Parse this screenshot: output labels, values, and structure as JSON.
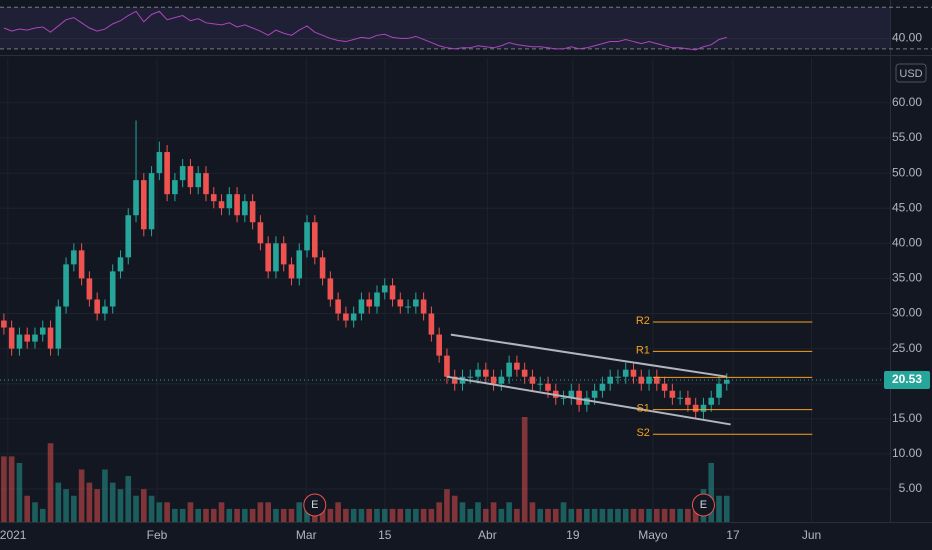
{
  "chart_data": {
    "type": "candlestick",
    "x": [
      0,
      1,
      2,
      3,
      4,
      5,
      6,
      7,
      8,
      9,
      10,
      11,
      12,
      13,
      14,
      15,
      16,
      17,
      18,
      19,
      20,
      21,
      22,
      23,
      24,
      25,
      26,
      27,
      28,
      29,
      30,
      31,
      32,
      33,
      34,
      35,
      36,
      37,
      38,
      39,
      40,
      41,
      42,
      43,
      44,
      45,
      46,
      47,
      48,
      49,
      50,
      51,
      52,
      53,
      54,
      55,
      56,
      57,
      58,
      59,
      60,
      61,
      62,
      63,
      64,
      65,
      66,
      67,
      68,
      69,
      70,
      71,
      72,
      73,
      74,
      75,
      76,
      77,
      78,
      79,
      80,
      81,
      82,
      83,
      84,
      85,
      86,
      87,
      88,
      89,
      90,
      91,
      92,
      93
    ],
    "open": [
      29,
      28,
      25,
      27,
      26,
      27,
      28,
      25,
      31,
      37,
      39,
      35,
      32,
      30,
      31,
      36,
      38,
      44,
      49,
      42,
      50,
      53,
      47,
      49,
      51,
      48,
      50,
      47,
      46,
      45,
      47,
      44,
      46,
      43,
      40,
      36,
      40,
      37,
      35,
      39,
      43,
      38,
      35,
      32,
      30,
      29,
      30,
      32,
      31,
      33,
      34,
      32,
      31,
      31,
      32,
      30,
      27,
      24,
      21,
      20,
      21,
      21,
      22,
      21,
      20,
      21,
      23,
      22,
      21,
      20,
      20,
      19,
      18,
      18,
      19,
      17,
      18,
      19,
      20,
      21,
      21,
      22,
      21,
      20,
      21,
      20,
      19,
      18,
      18,
      17,
      16,
      17,
      18,
      20
    ],
    "high": [
      30,
      29,
      28,
      28,
      28,
      29,
      29,
      32,
      38,
      40,
      40,
      36,
      33,
      32,
      37,
      39,
      45,
      57.5,
      50,
      51,
      54.5,
      54,
      50,
      52,
      52,
      51,
      51,
      48,
      47,
      48,
      48,
      47,
      47,
      44,
      41,
      41,
      41,
      38,
      40,
      44,
      44,
      39,
      36,
      33,
      31,
      31,
      33,
      33,
      34,
      35,
      35,
      33,
      32,
      33,
      33,
      31,
      28,
      25,
      22,
      22,
      22,
      23,
      23,
      22,
      22,
      24,
      24,
      23,
      22,
      21,
      21,
      20,
      19,
      20,
      20,
      19,
      20,
      21,
      22,
      22,
      23,
      23,
      22,
      22,
      22,
      21,
      20,
      19,
      19,
      18,
      18,
      19,
      21,
      21.5
    ],
    "low": [
      27,
      24,
      24,
      25,
      25,
      26,
      24,
      24,
      30,
      36,
      34,
      31,
      29,
      29,
      30,
      35,
      37,
      43,
      41,
      41,
      49,
      46,
      46,
      48,
      47,
      47,
      46,
      45,
      44,
      44,
      43,
      43,
      42,
      39,
      35,
      35,
      36,
      34,
      34,
      38,
      37,
      34,
      31,
      29,
      28,
      28,
      29,
      30,
      30,
      32,
      31,
      30,
      30,
      30,
      29,
      26,
      23,
      20,
      19,
      19,
      20,
      20,
      20,
      19,
      19,
      20,
      21,
      20,
      19,
      19,
      18,
      17,
      17,
      17,
      16,
      16,
      17,
      18,
      19,
      20,
      20,
      20,
      19,
      19,
      19,
      18,
      17,
      17,
      16,
      15,
      15,
      16,
      17,
      19
    ],
    "close": [
      28,
      25,
      27,
      26,
      27,
      28,
      25,
      31,
      37,
      39,
      35,
      32,
      30,
      31,
      36,
      38,
      44,
      49,
      42,
      50,
      53,
      47,
      49,
      51,
      48,
      50,
      47,
      46,
      45,
      47,
      44,
      46,
      43,
      40,
      36,
      40,
      37,
      35,
      39,
      43,
      38,
      35,
      32,
      30,
      29,
      30,
      32,
      31,
      33,
      34,
      32,
      31,
      31,
      32,
      30,
      27,
      24,
      21,
      20,
      21,
      21,
      22,
      21,
      20,
      21,
      23,
      22,
      21,
      20,
      20,
      19,
      18,
      18,
      19,
      17,
      18,
      19,
      20,
      21,
      21,
      22,
      21,
      20,
      21,
      20,
      19,
      18,
      18,
      17,
      16,
      17,
      18,
      20,
      20.53
    ],
    "volume": [
      10,
      10,
      9,
      4,
      3,
      2,
      12,
      6,
      5,
      4,
      8,
      6,
      5,
      8,
      6,
      5,
      7,
      4,
      5,
      4,
      3,
      3,
      2,
      2,
      3,
      2,
      2,
      2,
      3,
      2,
      2,
      2,
      2,
      3,
      3,
      2,
      2,
      2,
      3,
      3,
      2,
      2,
      2,
      3,
      2,
      2,
      2,
      2,
      2,
      2,
      2,
      2,
      2,
      2,
      2,
      2,
      3,
      5,
      4,
      3,
      2,
      3,
      2,
      3,
      2,
      3,
      2,
      16,
      3,
      2,
      2,
      2,
      3,
      2,
      2,
      2,
      2,
      2,
      2,
      2,
      2,
      2,
      2,
      2,
      2,
      2,
      2,
      2,
      2,
      3,
      5,
      9,
      4,
      4
    ],
    "up_color": "#26a69a",
    "down_color": "#ef5350",
    "ylim": [
      0.3,
      66.4
    ],
    "yticks": [
      {
        "value": 5,
        "label": "5.00"
      },
      {
        "value": 10,
        "label": "10.00"
      },
      {
        "value": 15,
        "label": "15.00"
      },
      {
        "value": 20,
        "label": "20.00"
      },
      {
        "value": 25,
        "label": "25.00"
      },
      {
        "value": 30,
        "label": "30.00"
      },
      {
        "value": 35,
        "label": "35.00"
      },
      {
        "value": 40,
        "label": "40.00"
      },
      {
        "value": 45,
        "label": "45.00"
      },
      {
        "value": 50,
        "label": "50.00"
      },
      {
        "value": 55,
        "label": "55.00"
      },
      {
        "value": 60,
        "label": "60.00"
      }
    ],
    "xlim": [
      -0.5,
      114
    ],
    "xticks": [
      {
        "value": 0.5,
        "label": "2021"
      },
      {
        "value": 19.7,
        "label": "Feb"
      },
      {
        "value": 38.9,
        "label": "Mar"
      },
      {
        "value": 49,
        "label": "15"
      },
      {
        "value": 62.2,
        "label": "Abr"
      },
      {
        "value": 73.2,
        "label": "19"
      },
      {
        "value": 83.5,
        "label": "Mayo"
      },
      {
        "value": 93.8,
        "label": "17"
      },
      {
        "value": 103.9,
        "label": "Jun"
      }
    ],
    "currency": "USD",
    "last_price": 20.53,
    "channel": [
      {
        "x": [
          57.5,
          93
        ],
        "y": [
          27,
          21
        ]
      },
      {
        "x": [
          57,
          93.5
        ],
        "y": [
          21,
          14.2
        ]
      }
    ],
    "pivots": [
      {
        "label": "R2",
        "value": 28.8
      },
      {
        "label": "R1",
        "value": 24.6
      },
      {
        "value": 20.9
      },
      {
        "label": "S1",
        "value": 16.3
      },
      {
        "label": "S2",
        "value": 12.8
      }
    ],
    "pivot_x": [
      83.5,
      104
    ],
    "events": [
      {
        "x": 40,
        "label": "E"
      },
      {
        "x": 90,
        "label": "E"
      }
    ],
    "rsi": {
      "values": [
        50,
        47,
        49,
        48,
        50,
        51,
        46,
        52,
        58,
        60,
        55,
        50,
        47,
        49,
        54,
        57,
        62,
        66,
        56,
        63,
        66,
        58,
        60,
        62,
        57,
        59,
        55,
        54,
        53,
        55,
        51,
        53,
        50,
        47,
        43,
        48,
        45,
        43,
        48,
        52,
        46,
        43,
        40,
        38,
        37,
        39,
        41,
        40,
        43,
        44,
        41,
        40,
        40,
        42,
        39,
        36,
        33,
        31,
        30,
        31,
        31,
        33,
        32,
        31,
        33,
        36,
        34,
        33,
        32,
        32,
        31,
        30,
        30,
        32,
        30,
        31,
        33,
        35,
        37,
        37,
        39,
        37,
        35,
        37,
        35,
        33,
        31,
        31,
        30,
        29,
        32,
        34,
        39,
        41
      ],
      "color": "#ab47bc",
      "ylim": [
        26,
        75
      ],
      "bands": [
        30,
        70
      ],
      "yticks": [
        {
          "value": 40,
          "label": "40.00"
        }
      ]
    }
  }
}
